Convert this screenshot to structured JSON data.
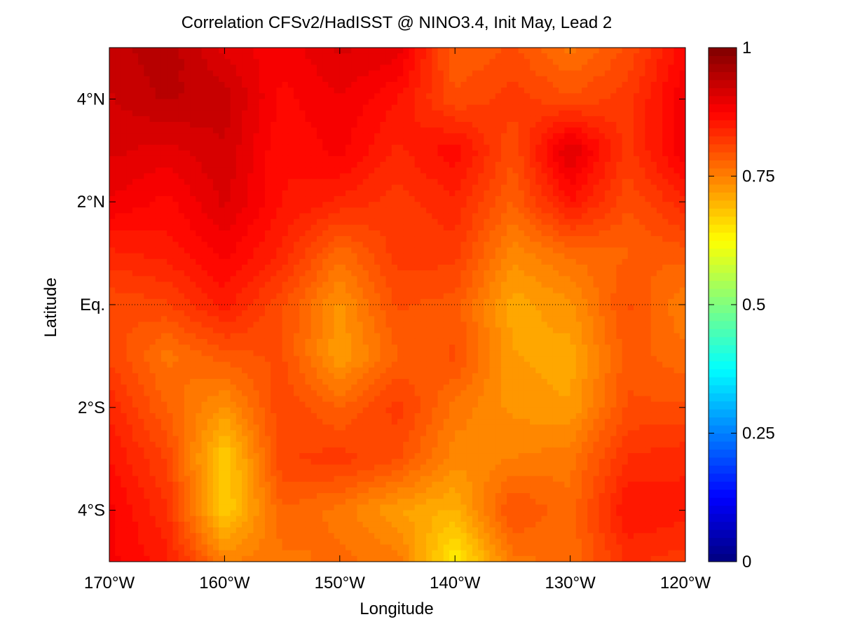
{
  "chart_data": {
    "type": "heatmap",
    "title": "Correlation CFSv2/HadISST @ NINO3.4, Init May, Lead 2",
    "xlabel": "Longitude",
    "ylabel": "Latitude",
    "xlim": [
      -170,
      -120
    ],
    "ylim": [
      -5,
      5
    ],
    "x_ticks": [
      {
        "value": -170,
        "label": "170°W"
      },
      {
        "value": -160,
        "label": "160°W"
      },
      {
        "value": -150,
        "label": "150°W"
      },
      {
        "value": -140,
        "label": "140°W"
      },
      {
        "value": -130,
        "label": "130°W"
      },
      {
        "value": -120,
        "label": "120°W"
      }
    ],
    "y_ticks": [
      {
        "value": 4,
        "label": "4°N"
      },
      {
        "value": 2,
        "label": "2°N"
      },
      {
        "value": 0,
        "label": "Eq."
      },
      {
        "value": -2,
        "label": "2°S"
      },
      {
        "value": -4,
        "label": "4°S"
      }
    ],
    "equator_line": true,
    "colorbar": {
      "range": [
        0,
        1
      ],
      "colormap": "jet",
      "ticks": [
        {
          "value": 0,
          "label": "0"
        },
        {
          "value": 0.25,
          "label": "0.25"
        },
        {
          "value": 0.5,
          "label": "0.5"
        },
        {
          "value": 0.75,
          "label": "0.75"
        },
        {
          "value": 1,
          "label": "1"
        }
      ]
    },
    "x": [
      -170,
      -165,
      -160,
      -155,
      -150,
      -145,
      -140,
      -135,
      -130,
      -125,
      -120
    ],
    "y": [
      5,
      4,
      3,
      2,
      1,
      0,
      -1,
      -2,
      -3,
      -4,
      -5
    ],
    "z": [
      [
        0.93,
        0.95,
        0.9,
        0.88,
        0.91,
        0.9,
        0.78,
        0.8,
        0.76,
        0.8,
        0.87
      ],
      [
        0.92,
        0.94,
        0.93,
        0.87,
        0.89,
        0.86,
        0.8,
        0.82,
        0.8,
        0.82,
        0.89
      ],
      [
        0.91,
        0.9,
        0.92,
        0.86,
        0.88,
        0.84,
        0.87,
        0.8,
        0.91,
        0.82,
        0.89
      ],
      [
        0.89,
        0.87,
        0.91,
        0.86,
        0.84,
        0.82,
        0.84,
        0.78,
        0.86,
        0.8,
        0.84
      ],
      [
        0.84,
        0.85,
        0.88,
        0.84,
        0.77,
        0.82,
        0.82,
        0.74,
        0.77,
        0.78,
        0.79
      ],
      [
        0.8,
        0.81,
        0.85,
        0.8,
        0.73,
        0.8,
        0.79,
        0.71,
        0.73,
        0.8,
        0.75
      ],
      [
        0.81,
        0.76,
        0.79,
        0.8,
        0.72,
        0.78,
        0.8,
        0.72,
        0.71,
        0.79,
        0.77
      ],
      [
        0.84,
        0.78,
        0.73,
        0.81,
        0.78,
        0.82,
        0.76,
        0.73,
        0.72,
        0.8,
        0.8
      ],
      [
        0.86,
        0.81,
        0.67,
        0.81,
        0.82,
        0.8,
        0.74,
        0.75,
        0.76,
        0.83,
        0.84
      ],
      [
        0.88,
        0.83,
        0.67,
        0.78,
        0.76,
        0.72,
        0.7,
        0.8,
        0.77,
        0.86,
        0.85
      ],
      [
        0.88,
        0.85,
        0.75,
        0.76,
        0.77,
        0.76,
        0.64,
        0.76,
        0.77,
        0.83,
        0.82
      ]
    ]
  }
}
